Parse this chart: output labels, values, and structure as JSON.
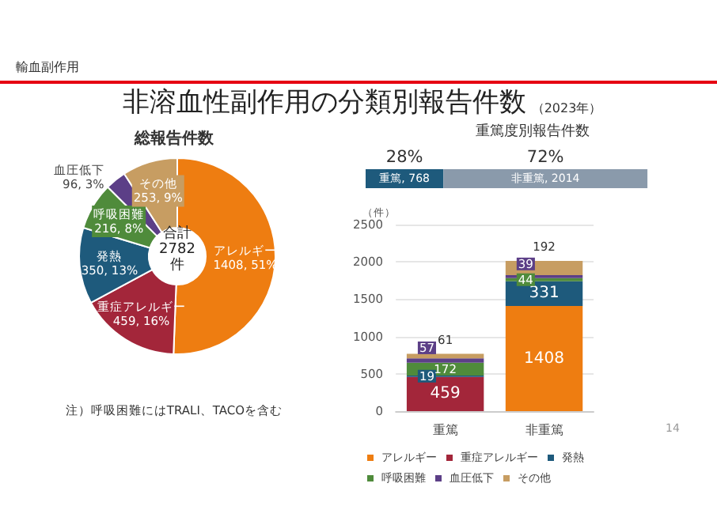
{
  "chart_data": [
    {
      "type": "donut",
      "title": "総報告件数",
      "categories": [
        "アレルギー",
        "重症アレルギー",
        "発熱",
        "呼吸困難",
        "血圧低下",
        "その他"
      ],
      "values": [
        1408,
        459,
        350,
        216,
        96,
        253
      ],
      "colors": [
        "#ee7d11",
        "#a3263a",
        "#1e5a7c",
        "#4f8b3b",
        "#5c3f87",
        "#c79d62"
      ],
      "value_labels": [
        "1408, 51%",
        "459, 16%",
        "350, 13%",
        "216, 8%",
        "96, 3%",
        "253, 9%"
      ],
      "annotations": [
        "合計\n2782\n件",
        "注）呼吸困難にはTRALI、TACOを含む",
        "輸血副作用",
        "非溶血性副作用の分類別報告件数",
        "（2023年）"
      ],
      "legend": false
    },
    {
      "type": "bar",
      "title": "重篤度別報告件数",
      "orientation": "horizontal",
      "stacked": true,
      "categories": [
        null
      ],
      "series": [
        {
          "name": "重篤",
          "color": "#1e5a7c",
          "values": [
            768
          ],
          "value_labels": [
            ", 768"
          ]
        },
        {
          "name": "非重篤",
          "color": "#8a9aab",
          "values": [
            2014
          ],
          "value_labels": [
            ", 2014"
          ]
        }
      ],
      "annotations": [
        "28%",
        "72%"
      ],
      "legend": false
    },
    {
      "type": "bar",
      "stacked": true,
      "ylabel": "（件）",
      "categories": [
        "重篤",
        "非重篤"
      ],
      "series": [
        {
          "name": "アレルギー",
          "color": "#ee7d11",
          "values": [
            0,
            1408
          ],
          "value_labels": [
            null,
            "1408"
          ]
        },
        {
          "name": "重症アレルギー",
          "color": "#a3263a",
          "values": [
            459,
            0
          ],
          "value_labels": [
            "459",
            null
          ]
        },
        {
          "name": "発熱",
          "color": "#1e5a7c",
          "values": [
            19,
            331
          ],
          "value_labels": [
            "19",
            "331"
          ]
        },
        {
          "name": "呼吸困難",
          "color": "#4f8b3b",
          "values": [
            172,
            44
          ],
          "value_labels": [
            "172",
            "44"
          ]
        },
        {
          "name": "血圧低下",
          "color": "#5c3f87",
          "values": [
            57,
            39
          ],
          "value_labels": [
            "57",
            "39"
          ]
        },
        {
          "name": "その他",
          "color": "#c79d62",
          "values": [
            61,
            192
          ],
          "value_labels": [
            "61",
            "192"
          ]
        }
      ],
      "ylim": [
        0,
        2500
      ],
      "yticks": [
        0,
        500,
        1000,
        1500,
        2000,
        2500
      ],
      "grid": "y",
      "legend": "bottom",
      "annotations": [
        "14"
      ]
    }
  ]
}
